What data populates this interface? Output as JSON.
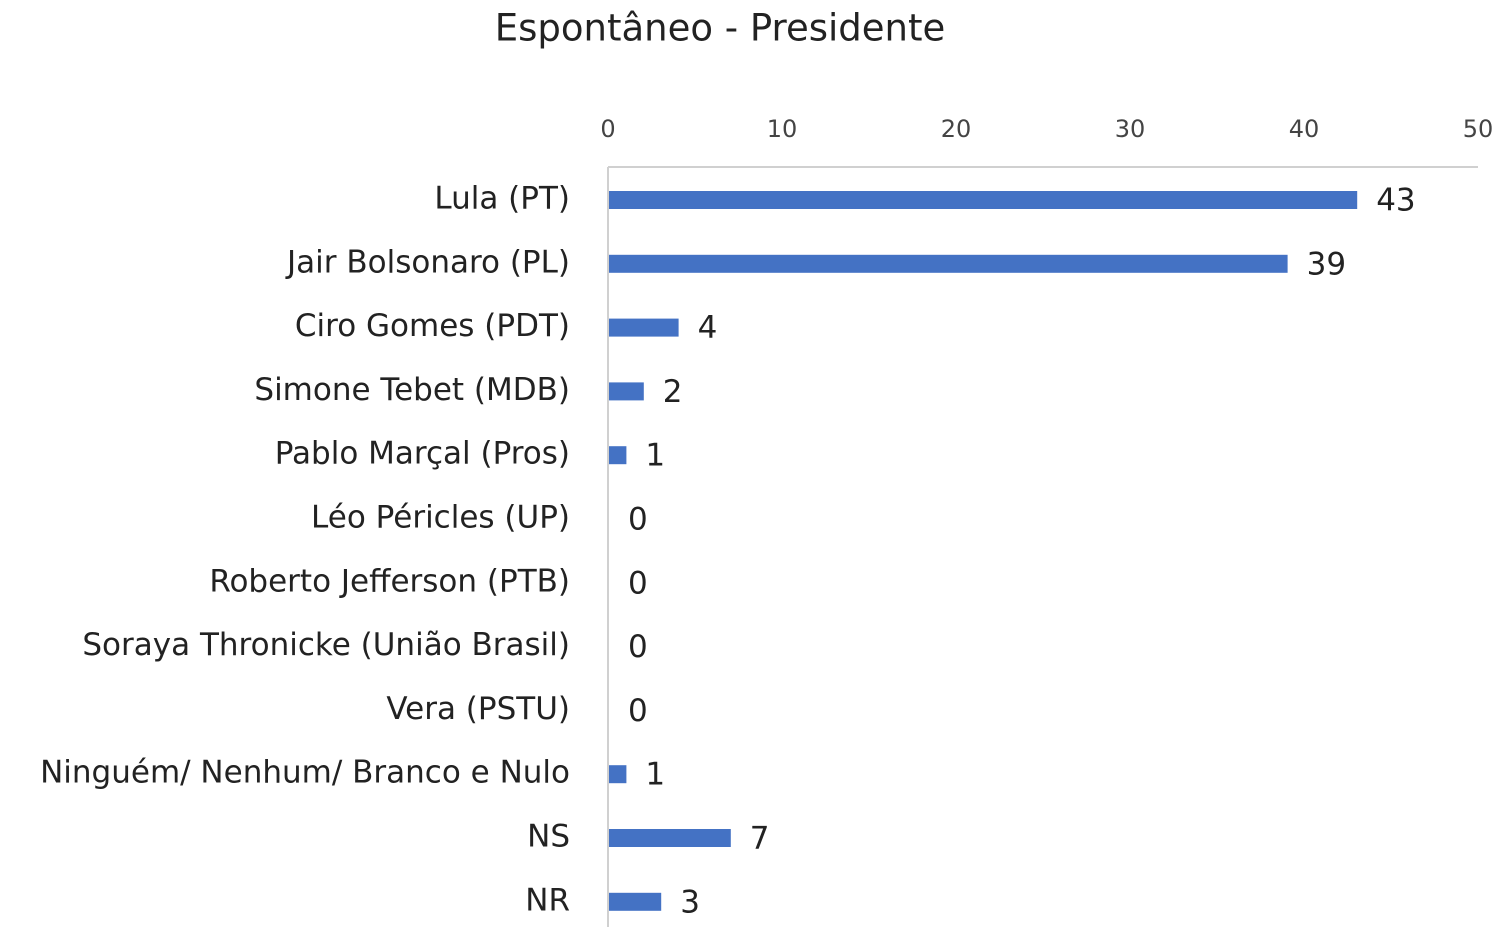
{
  "chart_data": {
    "type": "bar",
    "orientation": "horizontal",
    "title": "Espontâneo - Presidente",
    "categories": [
      "Lula (PT)",
      "Jair Bolsonaro (PL)",
      "Ciro Gomes (PDT)",
      "Simone Tebet (MDB)",
      "Pablo Marçal (Pros)",
      "Léo Péricles (UP)",
      "Roberto Jefferson (PTB)",
      "Soraya Thronicke (União Brasil)",
      "Vera (PSTU)",
      "Ninguém/ Nenhum/ Branco e Nulo",
      "NS",
      "NR"
    ],
    "values": [
      43,
      39,
      4,
      2,
      1,
      0,
      0,
      0,
      0,
      1,
      7,
      3
    ],
    "color": "#4472c4",
    "xlim": [
      0,
      50
    ],
    "xticks": [
      0,
      10,
      20,
      30,
      40,
      50
    ],
    "grid": false
  }
}
